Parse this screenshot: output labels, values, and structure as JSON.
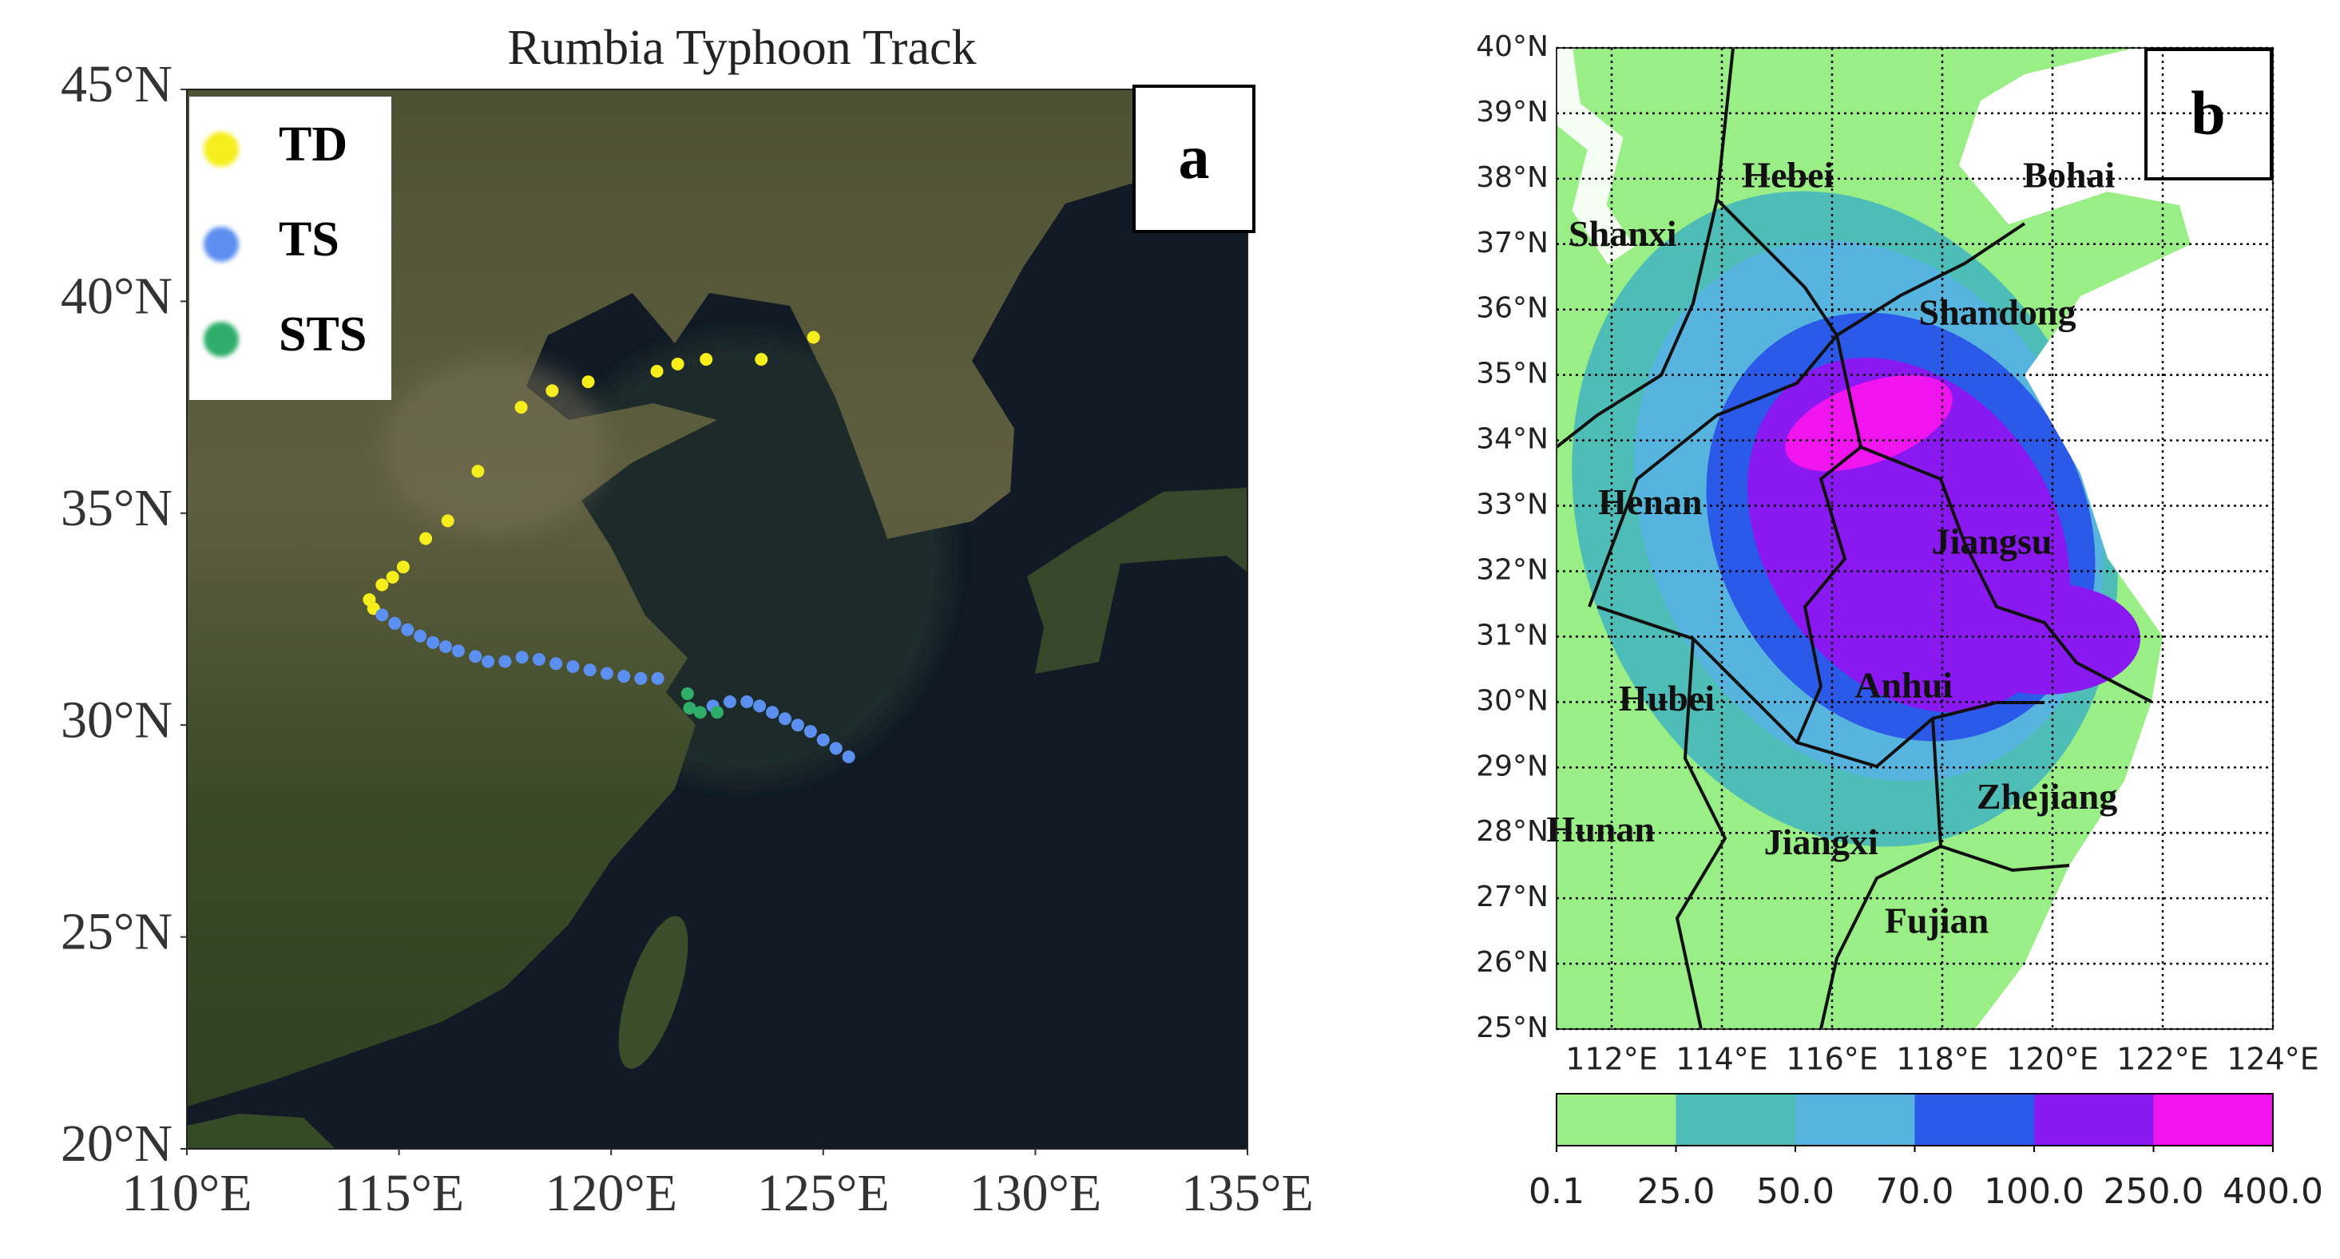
{
  "map_a": {
    "title": "Rumbia Typhoon Track",
    "panel_label": "a",
    "xlim": [
      110,
      135
    ],
    "ylim": [
      20,
      45
    ],
    "xticks": [
      {
        "value": 110,
        "label": "110°E"
      },
      {
        "value": 115,
        "label": "115°E"
      },
      {
        "value": 120,
        "label": "120°E"
      },
      {
        "value": 125,
        "label": "125°E"
      },
      {
        "value": 130,
        "label": "130°E"
      },
      {
        "value": 135,
        "label": "135°E"
      }
    ],
    "yticks": [
      {
        "value": 20,
        "label": "20°N"
      },
      {
        "value": 25,
        "label": "25°N"
      },
      {
        "value": 30,
        "label": "30°N"
      },
      {
        "value": 35,
        "label": "35°N"
      },
      {
        "value": 40,
        "label": "40°N"
      },
      {
        "value": 45,
        "label": "45°N"
      }
    ],
    "series": [
      {
        "name": "TD",
        "color": "#f6ee1c",
        "lon": [
          124.77,
          123.54,
          122.24,
          121.57,
          121.08,
          119.46,
          118.61,
          117.88,
          116.86,
          116.15,
          115.63,
          115.1,
          114.85,
          114.6,
          114.3,
          114.4
        ],
        "lat": [
          39.15,
          38.63,
          38.63,
          38.52,
          38.35,
          38.1,
          37.89,
          37.5,
          35.99,
          34.82,
          34.4,
          33.73,
          33.49,
          33.31,
          32.96,
          32.75
        ]
      },
      {
        "name": "TS",
        "color": "#5b8ff0",
        "lon": [
          114.6,
          114.9,
          115.2,
          115.5,
          115.8,
          116.1,
          116.4,
          116.8,
          117.1,
          117.5,
          117.9,
          118.3,
          118.7,
          119.1,
          119.5,
          119.9,
          120.3,
          120.7,
          121.1,
          122.4,
          122.8,
          123.2,
          123.5,
          123.8,
          124.1,
          124.4,
          124.7,
          125.0,
          125.3,
          125.6
        ],
        "lat": [
          32.6,
          32.4,
          32.25,
          32.1,
          31.95,
          31.85,
          31.75,
          31.62,
          31.5,
          31.5,
          31.6,
          31.55,
          31.45,
          31.38,
          31.3,
          31.22,
          31.15,
          31.1,
          31.1,
          30.45,
          30.55,
          30.55,
          30.45,
          30.3,
          30.15,
          30.0,
          29.85,
          29.65,
          29.45,
          29.25
        ]
      },
      {
        "name": "STS",
        "color": "#2fae6a",
        "lon": [
          121.8,
          121.85,
          122.1,
          122.5
        ],
        "lat": [
          30.74,
          30.4,
          30.3,
          30.3
        ]
      }
    ]
  },
  "map_b": {
    "panel_label": "b",
    "xlim": [
      111,
      124
    ],
    "ylim": [
      25,
      40
    ],
    "xticks": [
      {
        "value": 112,
        "label": "112°E"
      },
      {
        "value": 114,
        "label": "114°E"
      },
      {
        "value": 116,
        "label": "116°E"
      },
      {
        "value": 118,
        "label": "118°E"
      },
      {
        "value": 120,
        "label": "120°E"
      },
      {
        "value": 122,
        "label": "122°E"
      },
      {
        "value": 124,
        "label": "124°E"
      }
    ],
    "yticks": [
      {
        "value": 25,
        "label": "25°N"
      },
      {
        "value": 26,
        "label": "26°N"
      },
      {
        "value": 27,
        "label": "27°N"
      },
      {
        "value": 28,
        "label": "28°N"
      },
      {
        "value": 29,
        "label": "29°N"
      },
      {
        "value": 30,
        "label": "30°N"
      },
      {
        "value": 31,
        "label": "31°N"
      },
      {
        "value": 32,
        "label": "32°N"
      },
      {
        "value": 33,
        "label": "33°N"
      },
      {
        "value": 34,
        "label": "34°N"
      },
      {
        "value": 35,
        "label": "35°N"
      },
      {
        "value": 36,
        "label": "36°N"
      },
      {
        "value": 37,
        "label": "37°N"
      },
      {
        "value": 38,
        "label": "38°N"
      },
      {
        "value": 39,
        "label": "39°N"
      },
      {
        "value": 40,
        "label": "40°N"
      }
    ],
    "places": [
      {
        "name": "Shanxi",
        "lon": 112.2,
        "lat": 37.1
      },
      {
        "name": "Hebei",
        "lon": 115.2,
        "lat": 38.0
      },
      {
        "name": "Bohai",
        "lon": 120.3,
        "lat": 38.0
      },
      {
        "name": "Shandong",
        "lon": 119.0,
        "lat": 35.9
      },
      {
        "name": "Henan",
        "lon": 112.7,
        "lat": 33.0
      },
      {
        "name": "Jiangsu",
        "lon": 118.9,
        "lat": 32.4
      },
      {
        "name": "Hubei",
        "lon": 113.0,
        "lat": 30.0
      },
      {
        "name": "Anhui",
        "lon": 117.3,
        "lat": 30.2
      },
      {
        "name": "Zhejiang",
        "lon": 119.9,
        "lat": 28.5
      },
      {
        "name": "Hunan",
        "lon": 111.8,
        "lat": 28.0
      },
      {
        "name": "Jiangxi",
        "lon": 115.8,
        "lat": 27.8
      },
      {
        "name": "Fujian",
        "lon": 117.9,
        "lat": 26.6
      }
    ],
    "colorbar": {
      "levels": [
        0.1,
        {
          "value": 25,
          "label": "25.0"
        },
        {
          "value": 50,
          "label": "50.0"
        },
        {
          "value": 70,
          "label": "70.0"
        },
        {
          "value": 100,
          "label": "100.0"
        },
        {
          "value": 250,
          "label": "250.0"
        },
        {
          "value": 400,
          "label": "400.0"
        }
      ],
      "colors": [
        "#99ee85",
        "#4fbdb7",
        "#56b4df",
        "#2b5ae8",
        "#8a18f0",
        "#f014ee"
      ]
    }
  }
}
